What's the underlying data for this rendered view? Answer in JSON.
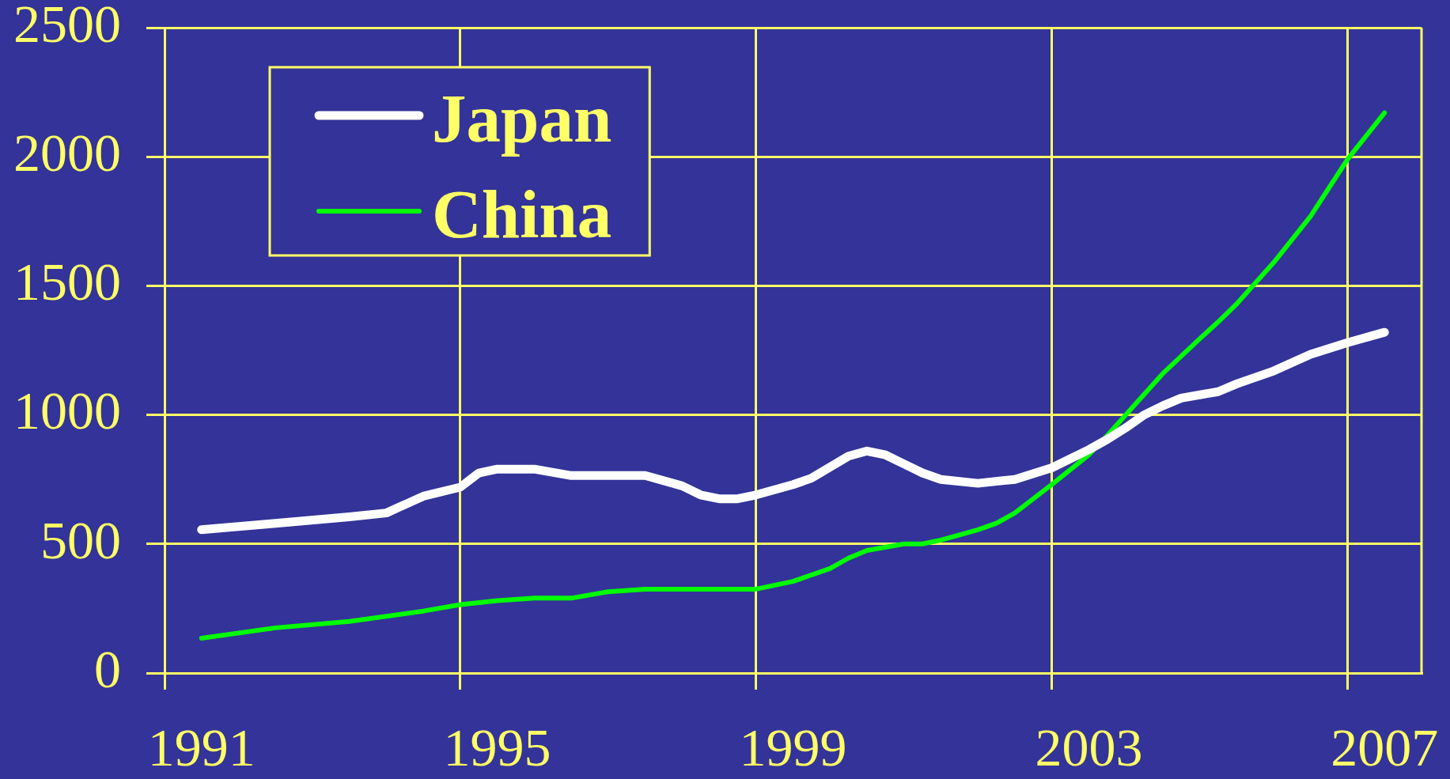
{
  "chart_data": {
    "type": "line",
    "series": [
      {
        "name": "Japan",
        "color": "#ffffff",
        "x": [
          1991,
          1992,
          1993,
          1993.5,
          1994,
          1994.5,
          1994.75,
          1995,
          1995.5,
          1996,
          1997,
          1997.5,
          1997.75,
          1998,
          1998.25,
          1998.5,
          1999,
          1999.25,
          1999.75,
          2000,
          2000.25,
          2000.5,
          2000.75,
          2001,
          2001.5,
          2002,
          2002.5,
          2003,
          2003.25,
          2003.5,
          2003.75,
          2004,
          2004.25,
          2004.75,
          2005,
          2005.5,
          2006,
          2006.5,
          2007
        ],
        "values": [
          555,
          580,
          605,
          620,
          685,
          720,
          775,
          790,
          790,
          765,
          765,
          725,
          690,
          675,
          675,
          690,
          730,
          755,
          840,
          860,
          845,
          810,
          775,
          750,
          735,
          750,
          795,
          865,
          905,
          950,
          1000,
          1035,
          1065,
          1090,
          1120,
          1170,
          1235,
          1280,
          1320
        ]
      },
      {
        "name": "China",
        "color": "#00ff00",
        "x": [
          1991,
          1992,
          1993,
          1994,
          1994.5,
          1995,
          1995.5,
          1996,
          1996.5,
          1997,
          1998.5,
          1999,
          1999.5,
          1999.75,
          2000,
          2000.5,
          2000.75,
          2001,
          2001.5,
          2001.75,
          2002,
          2002.5,
          2003,
          2003.25,
          2003.5,
          2004,
          2004.5,
          2004.75,
          2005,
          2005.5,
          2006,
          2006.5,
          2007
        ],
        "values": [
          135,
          175,
          200,
          240,
          265,
          280,
          290,
          290,
          315,
          325,
          325,
          355,
          405,
          445,
          475,
          500,
          500,
          515,
          555,
          580,
          620,
          730,
          845,
          920,
          1000,
          1160,
          1295,
          1360,
          1430,
          1590,
          1770,
          1990,
          2170
        ]
      }
    ],
    "xlim": [
      1990.5,
      2007.5
    ],
    "xticks": [
      {
        "value": 1990.5,
        "label": null
      },
      1991,
      {
        "value": 1994.5,
        "label": null
      },
      1995,
      {
        "value": 1998.5,
        "label": null
      },
      1999,
      {
        "value": 2002.5,
        "label": null
      },
      2003,
      {
        "value": 2006.5,
        "label": null
      },
      2007
    ],
    "ylim": [
      0,
      2500
    ],
    "yticks": [
      0,
      500,
      1000,
      1500,
      2000,
      2500
    ],
    "grid": true,
    "legend": "top left"
  }
}
